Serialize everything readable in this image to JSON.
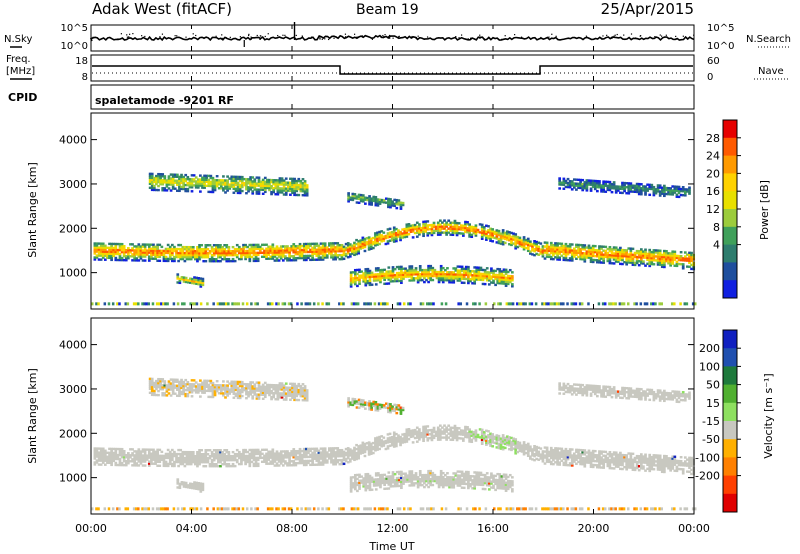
{
  "header": {
    "radar": "Adak West (fitACF)",
    "beam": "Beam 19",
    "date": "25/Apr/2015"
  },
  "sky_panel": {
    "left_label": "N.Sky",
    "right_label": "N.Search",
    "left_ticks": [
      "10^5",
      "10^0"
    ],
    "right_ticks": [
      "10^5",
      "10^0"
    ]
  },
  "freq_panel": {
    "left_label_1": "Freq.",
    "left_label_2": "[MHz]",
    "right_label": "Nave",
    "left_ticks": [
      "18",
      "8"
    ],
    "right_ticks": [
      "60",
      "0"
    ]
  },
  "cpid": {
    "label": "CPID",
    "mode_text": "spaletamode -9201 RF"
  },
  "chart_data": [
    {
      "type": "heatmap",
      "name": "power",
      "ylabel": "Slant Range [km]",
      "yticks": [
        1000,
        2000,
        3000,
        4000
      ],
      "ylim": [
        180,
        4600
      ],
      "colorbar_label": "Power [dB]",
      "colorbar_ticks": [
        "28",
        "24",
        "20",
        "16",
        "12",
        "8",
        "4"
      ],
      "colorbar_colors": [
        "#e60000",
        "#ff5a00",
        "#ff9a00",
        "#ffd200",
        "#e8e000",
        "#9ccc3c",
        "#3fa05a",
        "#2e7d6e",
        "#1f4f9e",
        "#1020e0"
      ]
    },
    {
      "type": "heatmap",
      "name": "velocity",
      "ylabel": "Slant Range [km]",
      "yticks": [
        1000,
        2000,
        3000,
        4000
      ],
      "ylim": [
        180,
        4600
      ],
      "colorbar_label": "Velocity [m s⁻¹]",
      "colorbar_ticks": [
        "200",
        "100",
        "50",
        "15",
        "-15",
        "-50",
        "-100",
        "-200"
      ],
      "colorbar_colors": [
        "#1020c0",
        "#2050b0",
        "#1e7a3c",
        "#50b030",
        "#8ee060",
        "#c8c8c0",
        "#ffb000",
        "#ff8000",
        "#ff4000",
        "#e00000"
      ]
    }
  ],
  "xaxis": {
    "label": "Time UT",
    "ticks": [
      "00:00",
      "04:00",
      "08:00",
      "12:00",
      "16:00",
      "20:00",
      "00:00"
    ]
  }
}
